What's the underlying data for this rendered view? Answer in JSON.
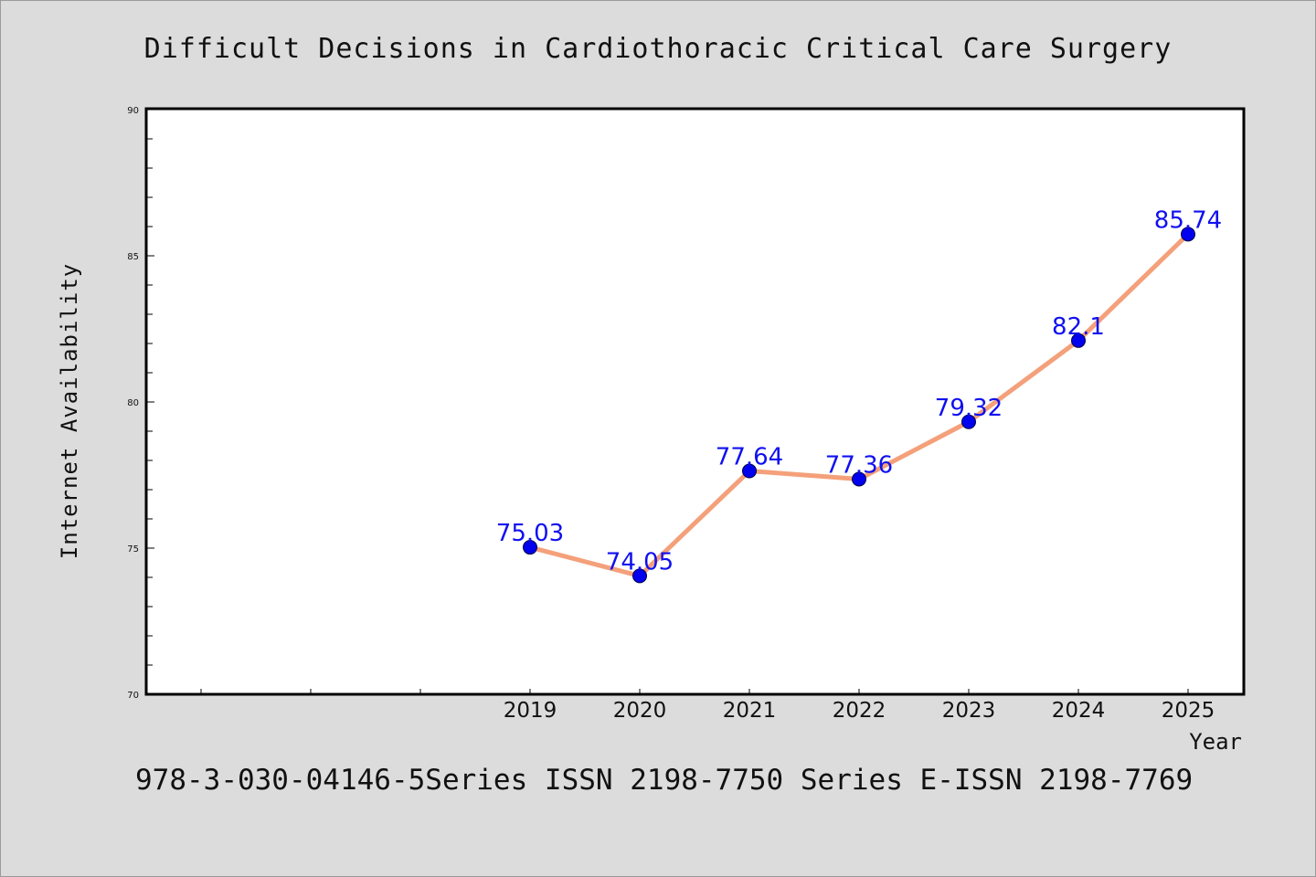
{
  "footer": "978-3-030-04146-5Series ISSN 2198-7750 Series E-ISSN 2198-7769",
  "colors": {
    "background": "#dcdcdc",
    "plot_background": "#ffffff",
    "line": "#f4a07a",
    "marker": "#0000ee",
    "data_label": "#1010f0"
  },
  "chart_data": {
    "type": "line",
    "title": "Difficult Decisions in Cardiothoracic Critical Care Surgery",
    "xlabel": "Year",
    "ylabel": "Internet Availability",
    "x": [
      "2019",
      "2020",
      "2021",
      "2022",
      "2023",
      "2024",
      "2025"
    ],
    "series": [
      {
        "values": [
          75.03,
          74.05,
          77.64,
          77.36,
          79.32,
          82.1,
          85.74
        ],
        "labels": [
          "75.03",
          "74.05",
          "77.64",
          "77.36",
          "79.32",
          "82.1",
          "85.74"
        ]
      }
    ],
    "ylim": [
      70,
      90
    ],
    "yticks": [
      "70",
      "75",
      "80",
      "85",
      "90"
    ],
    "grid": false,
    "legend": "none"
  }
}
